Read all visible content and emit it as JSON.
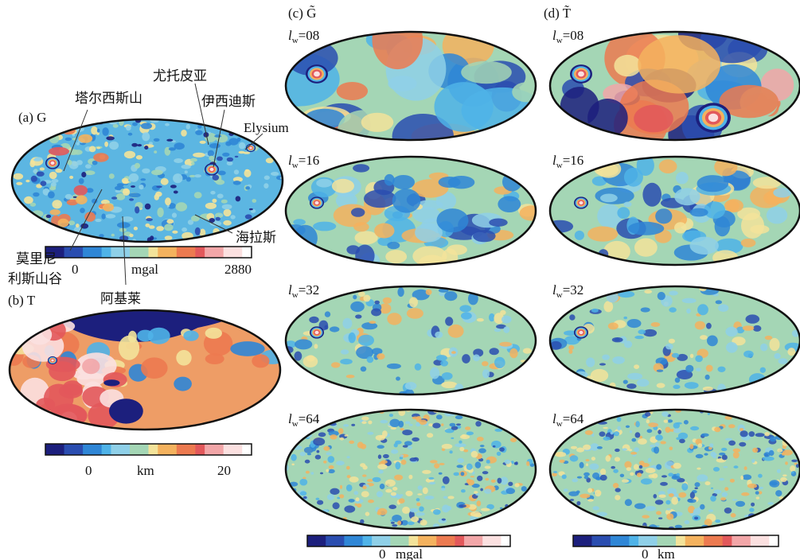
{
  "panel_a": {
    "label": "(a) G",
    "annotations": {
      "tharsis": "塔尔西斯山",
      "utopia": "尤托皮亚",
      "isidis": "伊西迪斯",
      "elysium": "Elysium",
      "hellas": "海拉斯",
      "valles_1": "莫里尼",
      "valles_2": "利斯山谷",
      "argyre": "阿基莱"
    },
    "colorbar": {
      "ticks": [
        0,
        2880
      ],
      "unit": "mgal"
    }
  },
  "panel_b": {
    "label": "(b) T",
    "colorbar": {
      "ticks": [
        0,
        20
      ],
      "unit": "km"
    }
  },
  "panel_c": {
    "label": "(c) G̃",
    "colorbar": {
      "tick": 0,
      "unit": "mgal"
    }
  },
  "panel_d": {
    "label": "(d) T̃",
    "colorbar": {
      "tick": 0,
      "unit": "km"
    }
  },
  "window_symbol": "l",
  "window_subscript": "w",
  "windows": [
    "=08",
    "=16",
    "=32",
    "=64"
  ]
}
